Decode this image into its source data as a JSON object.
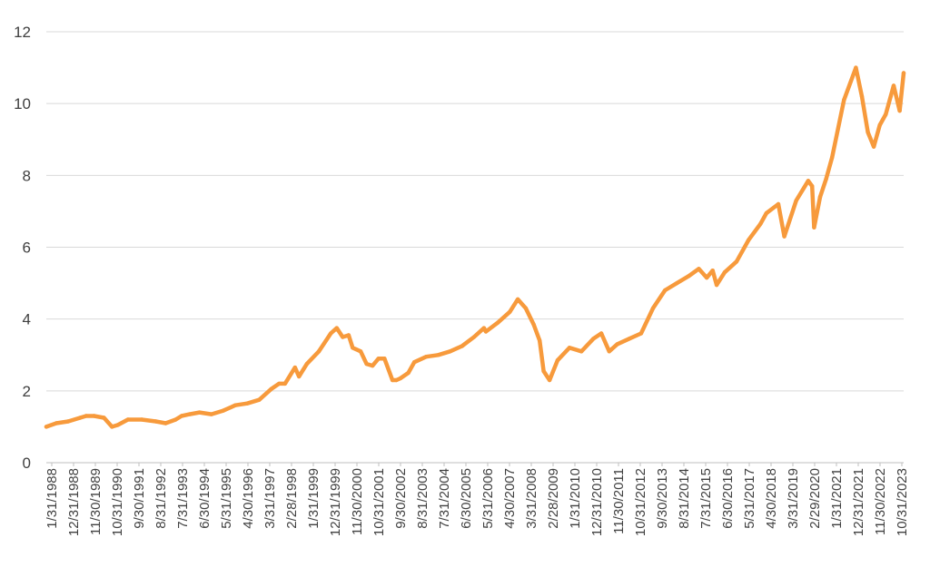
{
  "chart_data": {
    "type": "line",
    "title": "",
    "xlabel": "",
    "ylabel": "",
    "ylim": [
      0,
      12
    ],
    "yticks": [
      0,
      2,
      4,
      6,
      8,
      10,
      12
    ],
    "grid": true,
    "legend": "none",
    "line_color": "#F79A3C",
    "x_tick_labels": [
      "1/31/1988",
      "12/31/1988",
      "11/30/1989",
      "10/31/1990",
      "9/30/1991",
      "8/31/1992",
      "7/31/1993",
      "6/30/1994",
      "5/31/1995",
      "4/30/1996",
      "3/31/1997",
      "2/28/1998",
      "1/31/1999",
      "12/31/1999",
      "11/30/2000",
      "10/31/2001",
      "9/30/2002",
      "8/31/2003",
      "7/31/2004",
      "6/30/2005",
      "5/31/2006",
      "4/30/2007",
      "3/31/2008",
      "2/28/2009",
      "1/31/2010",
      "12/31/2010",
      "11/30/2011",
      "10/31/2012",
      "9/30/2013",
      "8/31/2014",
      "7/31/2015",
      "6/30/2016",
      "5/31/2017",
      "4/30/2018",
      "3/31/2019",
      "2/29/2020",
      "1/31/2021",
      "12/31/2021",
      "11/30/2022",
      "10/31/2023"
    ],
    "x_range": [
      "1988-01",
      "2023-12"
    ],
    "series": [
      {
        "x": [
          "1988-01",
          "1988-06",
          "1988-12",
          "1989-06",
          "1989-09",
          "1990-01",
          "1990-06",
          "1990-10",
          "1991-01",
          "1991-06",
          "1992-01",
          "1992-08",
          "1993-01",
          "1993-06",
          "1993-09",
          "1994-01",
          "1994-06",
          "1994-12",
          "1995-06",
          "1995-12",
          "1996-06",
          "1996-12",
          "1997-06",
          "1997-10",
          "1998-01",
          "1998-06",
          "1998-08",
          "1998-12",
          "1999-06",
          "1999-12",
          "2000-03",
          "2000-06",
          "2000-09",
          "2000-11",
          "2001-03",
          "2001-06",
          "2001-09",
          "2001-12",
          "2002-03",
          "2002-07",
          "2002-09",
          "2002-11",
          "2003-03",
          "2003-06",
          "2003-12",
          "2004-06",
          "2004-12",
          "2005-06",
          "2005-12",
          "2006-05",
          "2006-06",
          "2006-12",
          "2007-06",
          "2007-10",
          "2008-02",
          "2008-06",
          "2008-09",
          "2008-11",
          "2009-02",
          "2009-06",
          "2009-12",
          "2010-06",
          "2010-12",
          "2011-04",
          "2011-08",
          "2011-12",
          "2012-06",
          "2012-12",
          "2013-06",
          "2013-12",
          "2014-06",
          "2014-12",
          "2015-05",
          "2015-09",
          "2015-12",
          "2016-02",
          "2016-06",
          "2016-12",
          "2017-06",
          "2017-12",
          "2018-03",
          "2018-09",
          "2018-12",
          "2019-06",
          "2019-12",
          "2020-02",
          "2020-03",
          "2020-06",
          "2020-09",
          "2020-12",
          "2021-06",
          "2021-12",
          "2022-03",
          "2022-06",
          "2022-09",
          "2022-12",
          "2023-03",
          "2023-07",
          "2023-10",
          "2023-12"
        ],
        "values": [
          1.0,
          1.1,
          1.15,
          1.25,
          1.3,
          1.3,
          1.25,
          1.0,
          1.05,
          1.2,
          1.2,
          1.15,
          1.1,
          1.2,
          1.3,
          1.35,
          1.4,
          1.35,
          1.45,
          1.6,
          1.65,
          1.75,
          2.05,
          2.2,
          2.2,
          2.65,
          2.4,
          2.75,
          3.1,
          3.6,
          3.75,
          3.5,
          3.55,
          3.2,
          3.1,
          2.75,
          2.7,
          2.9,
          2.9,
          2.3,
          2.3,
          2.35,
          2.5,
          2.8,
          2.95,
          3.0,
          3.1,
          3.25,
          3.5,
          3.75,
          3.65,
          3.9,
          4.2,
          4.55,
          4.3,
          3.85,
          3.4,
          2.55,
          2.3,
          2.85,
          3.2,
          3.1,
          3.45,
          3.6,
          3.1,
          3.3,
          3.45,
          3.6,
          4.3,
          4.8,
          5.0,
          5.2,
          5.4,
          5.15,
          5.35,
          4.95,
          5.3,
          5.6,
          6.2,
          6.65,
          6.95,
          7.2,
          6.3,
          7.3,
          7.85,
          7.7,
          6.55,
          7.4,
          7.9,
          8.5,
          10.1,
          11.0,
          10.2,
          9.2,
          8.8,
          9.4,
          9.7,
          10.5,
          9.8,
          10.85
        ]
      }
    ]
  }
}
